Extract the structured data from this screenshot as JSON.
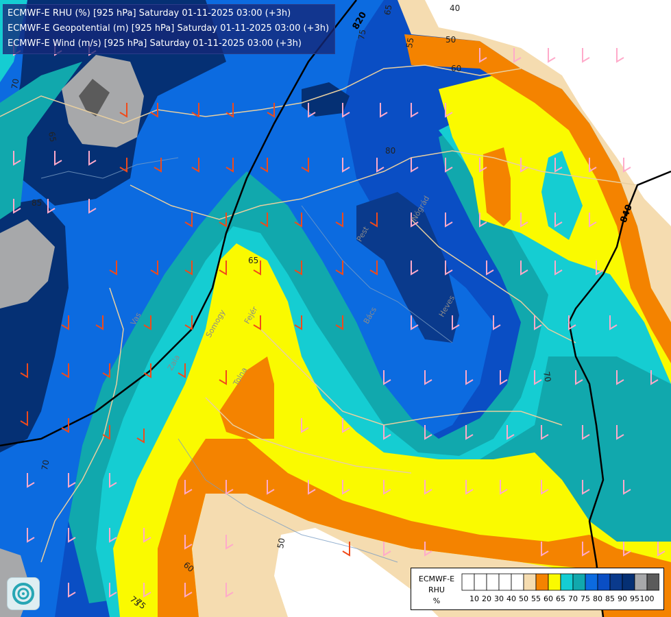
{
  "header": {
    "lines": [
      "ECMWF-E RHU (%) [925 hPa] Saturday 01-11-2025 03:00 (+3h)",
      "ECMWF-E Geopotential (m) [925 hPa] Saturday 01-11-2025 03:00 (+3h)",
      "ECMWF-E Wind (m/s) [925 hPa] Saturday 01-11-2025 03:00 (+3h)"
    ]
  },
  "colors": {
    "rh_bands": [
      "#ffffff",
      "#ffffff",
      "#ffffff",
      "#ffffff",
      "#ffffff",
      "#f5dcb0",
      "#f48300",
      "#fafa00",
      "#15cdd2",
      "#11a8ad",
      "#0c6be0",
      "#0a4ec4",
      "#0a3a8c",
      "#053074",
      "#a7a8aa",
      "#5b5b5b"
    ],
    "geopotential_line": "#000000",
    "border_line": "#e8cfa0",
    "river_line": "#7a9ec4"
  },
  "contour_labels": [
    {
      "text": "40"
    },
    {
      "text": "50"
    },
    {
      "text": "60"
    },
    {
      "text": "65"
    },
    {
      "text": "75"
    },
    {
      "text": "80"
    },
    {
      "text": "70"
    },
    {
      "text": "85"
    },
    {
      "text": "65"
    },
    {
      "text": "65"
    },
    {
      "text": "70"
    },
    {
      "text": "70"
    },
    {
      "text": "60"
    },
    {
      "text": "75"
    },
    {
      "text": "50"
    },
    {
      "text": "55"
    },
    {
      "text": "75"
    }
  ],
  "geopotential_labels": [
    {
      "text": "820"
    },
    {
      "text": "840"
    }
  ],
  "place_labels": [
    "Vas",
    "Somogy",
    "Zala",
    "Tolna",
    "Fejér",
    "Pest",
    "Nógrád",
    "Heves",
    "Bács"
  ],
  "legend": {
    "title_lines": [
      "ECMWF-E",
      "RHU",
      "%"
    ],
    "ticks": [
      "10",
      "20",
      "30",
      "40",
      "50",
      "55",
      "60",
      "65",
      "70",
      "75",
      "80",
      "85",
      "90",
      "95",
      "100"
    ]
  },
  "logo": {
    "icon": "ecmwf-swirl-icon"
  }
}
